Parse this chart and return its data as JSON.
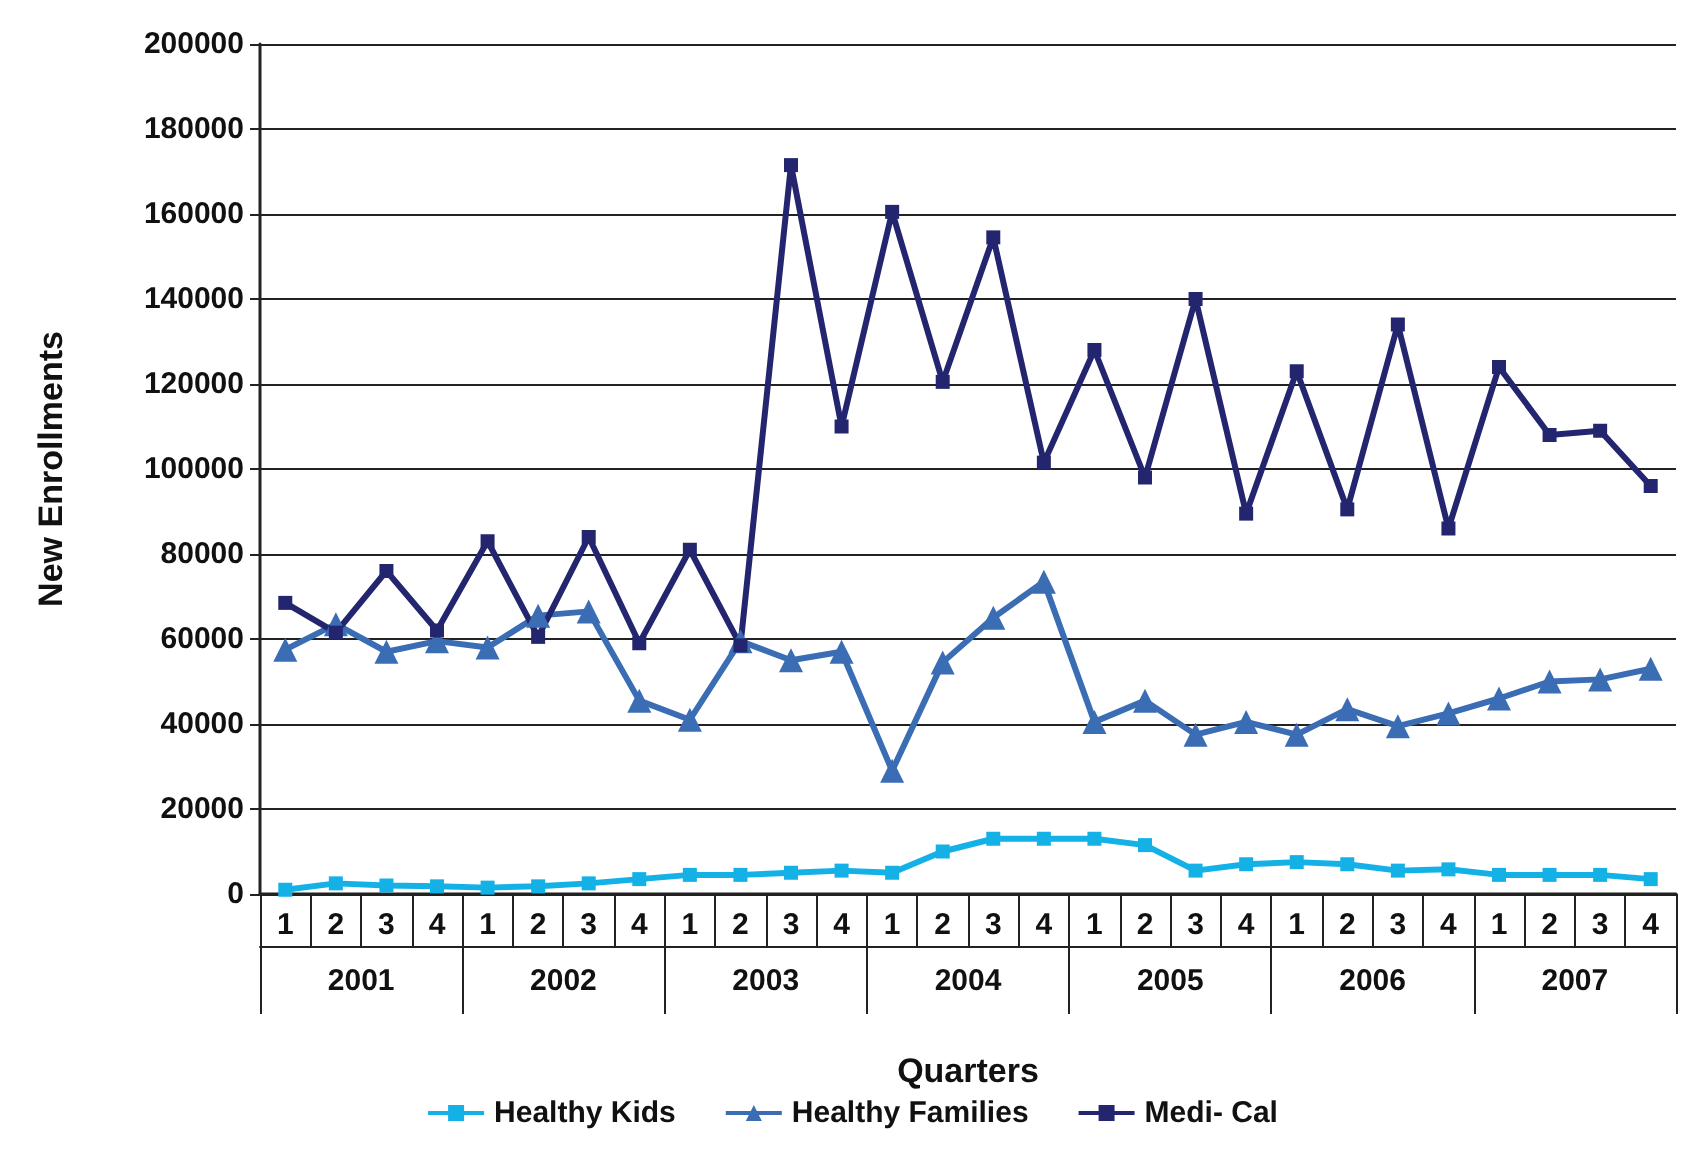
{
  "chart_data": {
    "type": "line",
    "xlabel": "Quarters",
    "ylabel": "New Enrollments",
    "categories": [
      "1",
      "2",
      "3",
      "4",
      "1",
      "2",
      "3",
      "4",
      "1",
      "2",
      "3",
      "4",
      "1",
      "2",
      "3",
      "4",
      "1",
      "2",
      "3",
      "4",
      "1",
      "2",
      "3",
      "4",
      "1",
      "2",
      "3",
      "4"
    ],
    "annotations": [
      "2001",
      "2002",
      "2003",
      "2004",
      "2005",
      "2006",
      "2007"
    ],
    "series": [
      {
        "name": "Healthy Kids",
        "color": "#14b1e7",
        "marker": "square",
        "values": [
          1000,
          2500,
          2000,
          1800,
          1500,
          1800,
          2500,
          3500,
          4500,
          4500,
          5000,
          5500,
          5000,
          10000,
          13000,
          13000,
          13000,
          11500,
          5500,
          7000,
          7500,
          7000,
          5500,
          5800,
          4500,
          4500,
          4500,
          3500
        ]
      },
      {
        "name": "Healthy Families",
        "color": "#3a6db3",
        "marker": "triangle",
        "values": [
          57500,
          63500,
          57000,
          59500,
          58000,
          65500,
          66500,
          45500,
          41000,
          59500,
          55000,
          57000,
          29000,
          54500,
          65000,
          73500,
          40500,
          45500,
          37500,
          40500,
          37500,
          43500,
          39500,
          42500,
          46000,
          50000,
          50500,
          53000
        ]
      },
      {
        "name": "Medi- Cal",
        "color": "#23266f",
        "marker": "square",
        "values": [
          68500,
          61500,
          76000,
          62000,
          83000,
          60500,
          84000,
          59000,
          81000,
          58500,
          171500,
          110000,
          160500,
          120500,
          154500,
          101500,
          128000,
          98000,
          140000,
          89500,
          123000,
          90500,
          134000,
          86000,
          124000,
          108000,
          109000,
          96000
        ]
      }
    ],
    "ylim": [
      0,
      200000
    ],
    "yticks": [
      0,
      20000,
      40000,
      60000,
      80000,
      100000,
      120000,
      140000,
      160000,
      180000,
      200000
    ],
    "grid": "y",
    "legend": "bottom",
    "line_style": "solid"
  }
}
